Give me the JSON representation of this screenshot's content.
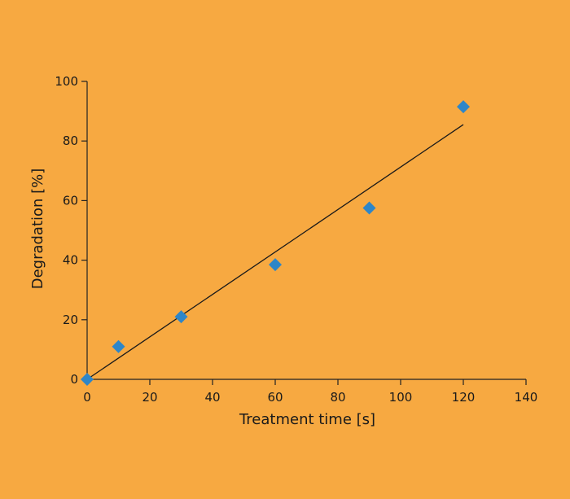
{
  "chart_data": {
    "type": "scatter",
    "title": "",
    "xlabel": "Treatment time [s]",
    "ylabel": "Degradation [%]",
    "xlim": [
      0,
      140
    ],
    "ylim": [
      0,
      100
    ],
    "xticks": [
      0,
      20,
      40,
      60,
      80,
      100,
      120,
      140
    ],
    "yticks": [
      0,
      20,
      40,
      60,
      80,
      100
    ],
    "grid": false,
    "legend": "none",
    "marker": "diamond",
    "marker_color": "#2E86C8",
    "background_color": "#F7A941",
    "series": [
      {
        "x": [
          0,
          10,
          30,
          60,
          90,
          120
        ],
        "y": [
          0,
          11,
          21,
          38.5,
          57.5,
          91.5
        ]
      }
    ],
    "trendline": {
      "type": "linear",
      "x": [
        0,
        120
      ],
      "y": [
        0,
        85.5
      ]
    }
  }
}
